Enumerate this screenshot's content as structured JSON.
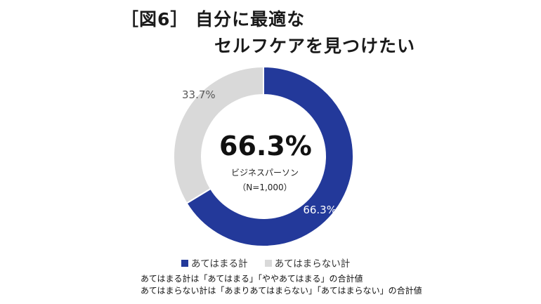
{
  "title": {
    "line1": "［図6］ 自分に最適な",
    "line2": "セルフケアを見つけたい"
  },
  "chart_data": {
    "type": "pie",
    "variant": "donut",
    "categories": [
      "あてはまる計",
      "あてはまらない計"
    ],
    "values": [
      66.3,
      33.7
    ],
    "data_labels": [
      "66.3%",
      "33.7%"
    ],
    "colors": [
      "#23399a",
      "#d9d9d9"
    ],
    "center_text": {
      "value": "66.3%",
      "group": "ビジネスパーソン",
      "sample": "（N=1,000）"
    },
    "legend": [
      {
        "label": "あてはまる計",
        "color": "#23399a"
      },
      {
        "label": "あてはまらない計",
        "color": "#d9d9d9"
      }
    ],
    "legend_placement": "bottom"
  },
  "notes": [
    "あてはまる計は「あてはまる」「ややあてはまる」の合計値",
    "あてはまらない計は「あまりあてはまらない」「あてはまらない」の合計値"
  ]
}
